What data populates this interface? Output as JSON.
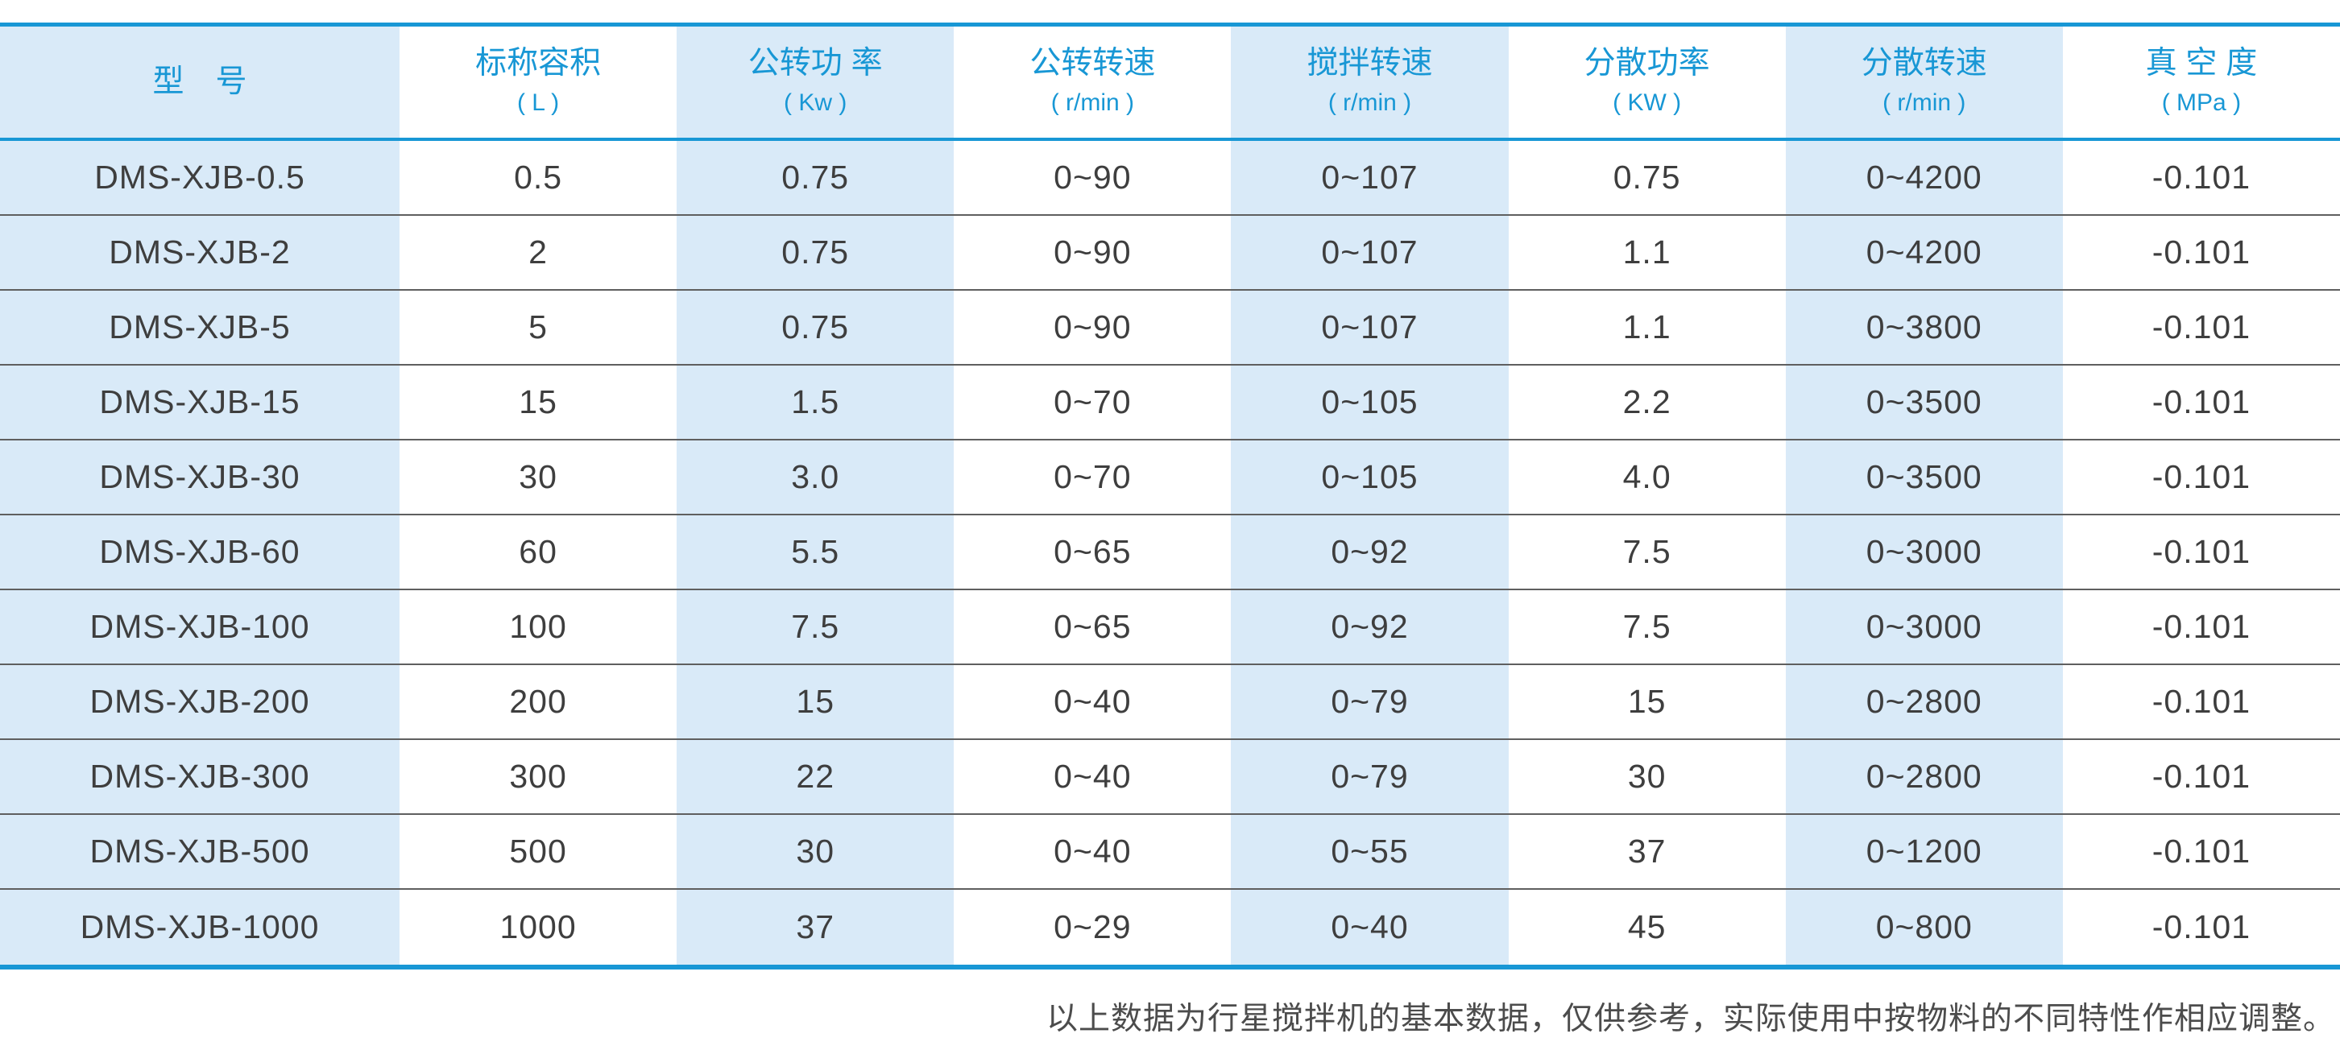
{
  "colors": {
    "accent_blue": "#1897d5",
    "light_blue_column": "#d9eaf8",
    "data_text": "#3e3e3e",
    "row_separator": "#5f5f5f",
    "footer_text": "#4c4c4c"
  },
  "table": {
    "columns": [
      {
        "label": "型　号",
        "unit": ""
      },
      {
        "label": "标称容积",
        "unit": "( L )"
      },
      {
        "label": "公转功 率",
        "unit": "( Kw )"
      },
      {
        "label": "公转转速",
        "unit": "( r/min )"
      },
      {
        "label": "搅拌转速",
        "unit": "( r/min )"
      },
      {
        "label": "分散功率",
        "unit": "( KW )"
      },
      {
        "label": "分散转速",
        "unit": "( r/min )"
      },
      {
        "label": "真 空 度",
        "unit": "( MPa )"
      }
    ],
    "rows": [
      [
        "DMS-XJB-0.5",
        "0.5",
        "0.75",
        "0~90",
        "0~107",
        "0.75",
        "0~4200",
        "-0.101"
      ],
      [
        "DMS-XJB-2",
        "2",
        "0.75",
        "0~90",
        "0~107",
        "1.1",
        "0~4200",
        "-0.101"
      ],
      [
        "DMS-XJB-5",
        "5",
        "0.75",
        "0~90",
        "0~107",
        "1.1",
        "0~3800",
        "-0.101"
      ],
      [
        "DMS-XJB-15",
        "15",
        "1.5",
        "0~70",
        "0~105",
        "2.2",
        "0~3500",
        "-0.101"
      ],
      [
        "DMS-XJB-30",
        "30",
        "3.0",
        "0~70",
        "0~105",
        "4.0",
        "0~3500",
        "-0.101"
      ],
      [
        "DMS-XJB-60",
        "60",
        "5.5",
        "0~65",
        "0~92",
        "7.5",
        "0~3000",
        "-0.101"
      ],
      [
        "DMS-XJB-100",
        "100",
        "7.5",
        "0~65",
        "0~92",
        "7.5",
        "0~3000",
        "-0.101"
      ],
      [
        "DMS-XJB-200",
        "200",
        "15",
        "0~40",
        "0~79",
        "15",
        "0~2800",
        "-0.101"
      ],
      [
        "DMS-XJB-300",
        "300",
        "22",
        "0~40",
        "0~79",
        "30",
        "0~2800",
        "-0.101"
      ],
      [
        "DMS-XJB-500",
        "500",
        "30",
        "0~40",
        "0~55",
        "37",
        "0~1200",
        "-0.101"
      ],
      [
        "DMS-XJB-1000",
        "1000",
        "37",
        "0~29",
        "0~40",
        "45",
        "0~800",
        "-0.101"
      ]
    ]
  },
  "footer": {
    "note": "以上数据为行星搅拌机的基本数据，仅供参考，实际使用中按物料的不同特性作相应调整。"
  }
}
